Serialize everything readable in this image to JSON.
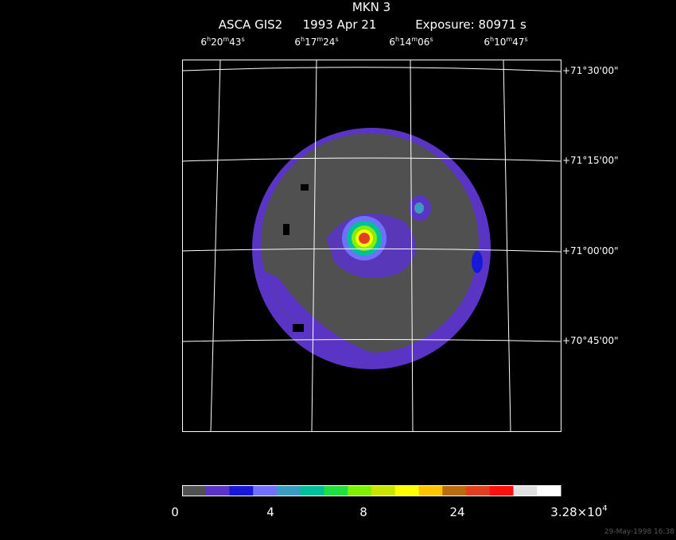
{
  "header": {
    "title": "MKN 3",
    "instrument": "ASCA GIS2",
    "date": "1993 Apr 21",
    "exposure": "Exposure: 80971 s"
  },
  "ra_labels": [
    [
      "6",
      "h",
      "20",
      "m",
      "43",
      "s"
    ],
    [
      "6",
      "h",
      "17",
      "m",
      "24",
      "s"
    ],
    [
      "6",
      "h",
      "14",
      "m",
      "06",
      "s"
    ],
    [
      "6",
      "h",
      "10",
      "m",
      "47",
      "s"
    ]
  ],
  "dec_labels": [
    "+71°30'00\"",
    "+71°15'00\"",
    "+71°00'00\"",
    "+70°45'00\""
  ],
  "colorbar": {
    "colors": [
      "#505050",
      "#5a34c4",
      "#1818d8",
      "#7070ff",
      "#3c9cc0",
      "#00c09c",
      "#20e040",
      "#80f000",
      "#c8e400",
      "#ffff00",
      "#ffc400",
      "#b86c10",
      "#e04020",
      "#ff1010",
      "#e0e0e0",
      "#ffffff"
    ],
    "labels": [
      "0",
      "4",
      "8",
      "24"
    ],
    "max_label": {
      "mantissa": "3.28×10",
      "exponent": "4"
    }
  },
  "timestamp": "29-May-1998 16:38"
}
